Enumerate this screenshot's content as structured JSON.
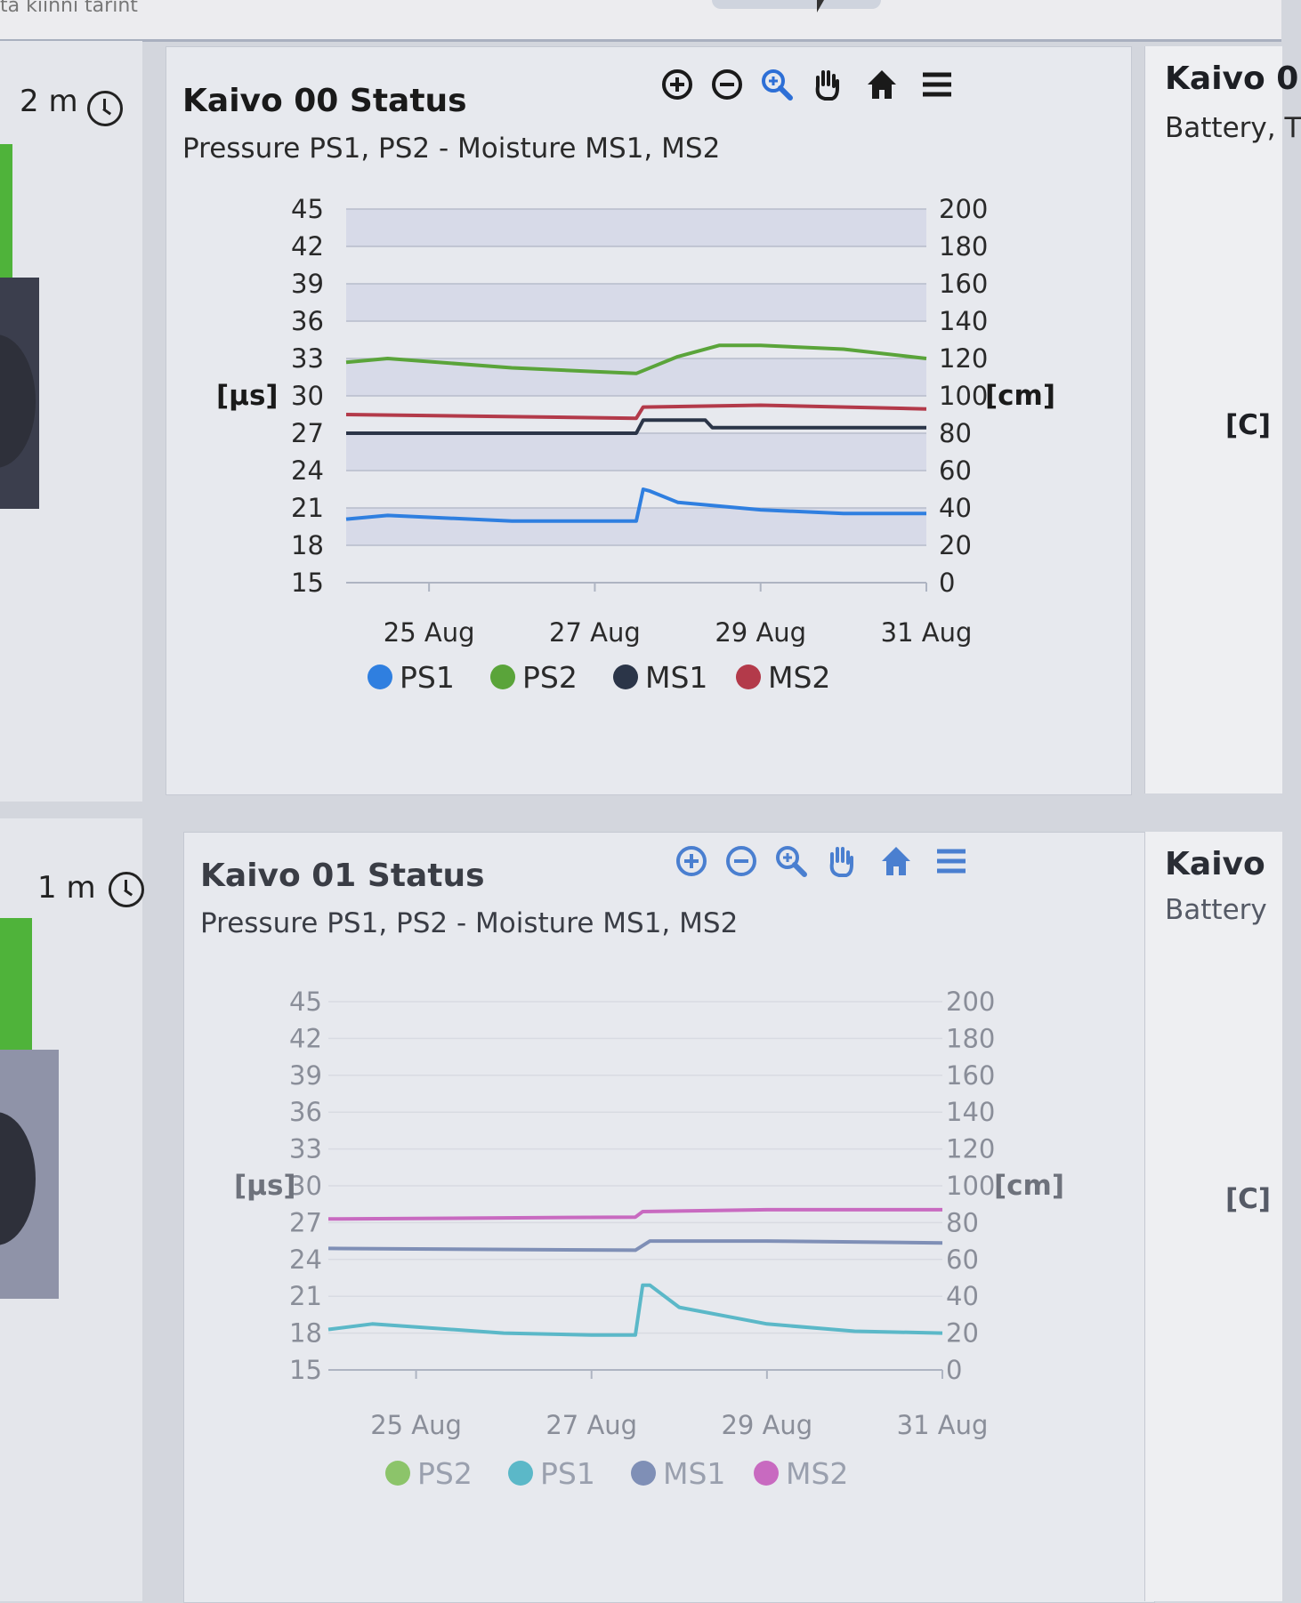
{
  "topbar": {
    "fragment": "ta kiinni  tarint"
  },
  "panels": [
    {
      "age": "2 m",
      "title": "Kaivo 00 Status",
      "subtitle": "Pressure PS1, PS2 - Moisture MS1, MS2",
      "left_axis_label": "[μs]",
      "right_axis_label": "[cm]",
      "side_card": {
        "title": "Kaivo 0",
        "subtitle": "Battery, T",
        "unit": "[C]"
      },
      "tools": [
        "zoom-in-icon",
        "zoom-out-icon",
        "magnifier-icon",
        "pan-hand-icon",
        "home-icon",
        "menu-icon"
      ]
    },
    {
      "age": "1 m",
      "title": "Kaivo 01 Status",
      "subtitle": "Pressure PS1, PS2 - Moisture MS1, MS2",
      "left_axis_label": "[μs]",
      "right_axis_label": "[cm]",
      "side_card": {
        "title": "Kaivo",
        "subtitle": "Battery",
        "unit": "[C]"
      },
      "tools": [
        "zoom-in-icon",
        "zoom-out-icon",
        "magnifier-icon",
        "pan-hand-icon",
        "home-icon",
        "menu-icon"
      ]
    }
  ],
  "chart_data": [
    {
      "type": "line",
      "title": "Kaivo 00 Status",
      "subtitle": "Pressure PS1, PS2 - Moisture MS1, MS2",
      "x_ticks": [
        "25 Aug",
        "27 Aug",
        "29 Aug",
        "31 Aug"
      ],
      "xlim": [
        "2021-08-24",
        "2021-08-31"
      ],
      "y_left": {
        "label": "[μs]",
        "ticks": [
          15,
          18,
          21,
          24,
          27,
          30,
          33,
          36,
          39,
          42,
          45
        ],
        "range": [
          15,
          45
        ]
      },
      "y_right": {
        "label": "[cm]",
        "ticks": [
          0,
          20,
          40,
          60,
          80,
          100,
          120,
          140,
          160,
          180,
          200
        ],
        "range": [
          0,
          200
        ]
      },
      "grid": true,
      "legend_position": "bottom",
      "series": [
        {
          "name": "PS1",
          "axis": "right",
          "color": "#2f7fe0",
          "points": [
            [
              "2021-08-24",
              34
            ],
            [
              "2021-08-24 12:00",
              36
            ],
            [
              "2021-08-26",
              33
            ],
            [
              "2021-08-27",
              33
            ],
            [
              "2021-08-27 12:00",
              33
            ],
            [
              "2021-08-27 14:00",
              50
            ],
            [
              "2021-08-27 16:00",
              49
            ],
            [
              "2021-08-28",
              43
            ],
            [
              "2021-08-29",
              39
            ],
            [
              "2021-08-30",
              37
            ],
            [
              "2021-08-31",
              37
            ]
          ]
        },
        {
          "name": "PS2",
          "axis": "right",
          "color": "#5aa43a",
          "points": [
            [
              "2021-08-24",
              118
            ],
            [
              "2021-08-24 12:00",
              120
            ],
            [
              "2021-08-26",
              115
            ],
            [
              "2021-08-27",
              113
            ],
            [
              "2021-08-27 12:00",
              112
            ],
            [
              "2021-08-28",
              121
            ],
            [
              "2021-08-28 12:00",
              127
            ],
            [
              "2021-08-29",
              127
            ],
            [
              "2021-08-30",
              125
            ],
            [
              "2021-08-31",
              120
            ]
          ]
        },
        {
          "name": "MS1",
          "axis": "right",
          "color": "#2b3548",
          "points": [
            [
              "2021-08-24",
              80
            ],
            [
              "2021-08-27 12:00",
              80
            ],
            [
              "2021-08-27 14:00",
              87
            ],
            [
              "2021-08-28 08:00",
              87
            ],
            [
              "2021-08-28 10:00",
              83
            ],
            [
              "2021-08-31",
              83
            ]
          ]
        },
        {
          "name": "MS2",
          "axis": "right",
          "color": "#b33a4a",
          "points": [
            [
              "2021-08-24",
              90
            ],
            [
              "2021-08-27 12:00",
              88
            ],
            [
              "2021-08-27 14:00",
              94
            ],
            [
              "2021-08-29",
              95
            ],
            [
              "2021-08-31",
              93
            ]
          ]
        }
      ]
    },
    {
      "type": "line",
      "title": "Kaivo 01 Status",
      "subtitle": "Pressure PS1, PS2 - Moisture MS1, MS2",
      "x_ticks": [
        "25 Aug",
        "27 Aug",
        "29 Aug",
        "31 Aug"
      ],
      "xlim": [
        "2021-08-24",
        "2021-08-31"
      ],
      "y_left": {
        "label": "[μs]",
        "ticks": [
          15,
          18,
          21,
          24,
          27,
          30,
          33,
          36,
          39,
          42,
          45
        ],
        "range": [
          15,
          45
        ]
      },
      "y_right": {
        "label": "[cm]",
        "ticks": [
          0,
          20,
          40,
          60,
          80,
          100,
          120,
          140,
          160,
          180,
          200
        ],
        "range": [
          0,
          200
        ]
      },
      "grid": true,
      "legend_position": "bottom",
      "series": [
        {
          "name": "PS2",
          "axis": "right",
          "color": "#8cc46a",
          "points": []
        },
        {
          "name": "PS1",
          "axis": "right",
          "color": "#5bb8c8",
          "points": [
            [
              "2021-08-24",
              22
            ],
            [
              "2021-08-24 12:00",
              25
            ],
            [
              "2021-08-26",
              20
            ],
            [
              "2021-08-27",
              19
            ],
            [
              "2021-08-27 12:00",
              19
            ],
            [
              "2021-08-27 14:00",
              46
            ],
            [
              "2021-08-27 16:00",
              46
            ],
            [
              "2021-08-28",
              34
            ],
            [
              "2021-08-29",
              25
            ],
            [
              "2021-08-30",
              21
            ],
            [
              "2021-08-31",
              20
            ]
          ]
        },
        {
          "name": "MS1",
          "axis": "right",
          "color": "#7f8fb6",
          "points": [
            [
              "2021-08-24",
              66
            ],
            [
              "2021-08-27 12:00",
              65
            ],
            [
              "2021-08-27 16:00",
              70
            ],
            [
              "2021-08-29",
              70
            ],
            [
              "2021-08-31",
              69
            ]
          ]
        },
        {
          "name": "MS2",
          "axis": "right",
          "color": "#c86ac0",
          "points": [
            [
              "2021-08-24",
              82
            ],
            [
              "2021-08-27 12:00",
              83
            ],
            [
              "2021-08-27 14:00",
              86
            ],
            [
              "2021-08-29",
              87
            ],
            [
              "2021-08-31",
              87
            ]
          ]
        }
      ]
    }
  ]
}
